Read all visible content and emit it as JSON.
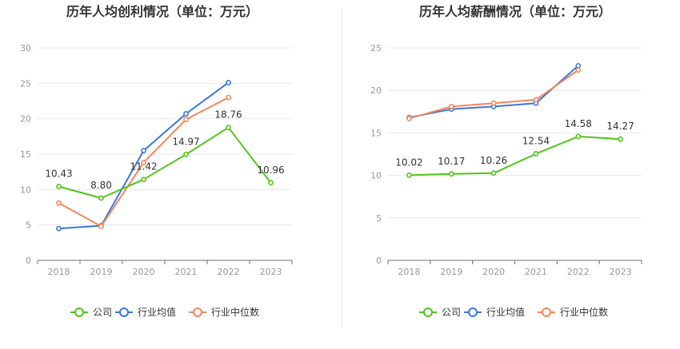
{
  "colors": {
    "company": "#52c41a",
    "industry_avg": "#3a78db",
    "industry_median": "#f4875a",
    "grid": "#e6e8f0",
    "axis": "#999999",
    "label_text": "#333333",
    "title_text": "#333333"
  },
  "legend": {
    "company": "公司",
    "industry_avg": "行业均值",
    "industry_median": "行业中位数"
  },
  "chart_data": [
    {
      "type": "line",
      "title": "历年人均创利情况（单位：万元）",
      "categories": [
        "2018",
        "2019",
        "2020",
        "2021",
        "2022",
        "2023"
      ],
      "ylim": [
        0,
        30
      ],
      "yticks": [
        "0",
        "5",
        "10",
        "15",
        "20",
        "25",
        "30"
      ],
      "grid": true,
      "legend_position": "bottom",
      "series": [
        {
          "name": "公司",
          "key": "company",
          "values": [
            10.43,
            8.8,
            11.42,
            14.97,
            18.76,
            10.96
          ],
          "labels": [
            "10.43",
            "8.80",
            "11.42",
            "14.97",
            "18.76",
            "10.96"
          ]
        },
        {
          "name": "行业均值",
          "key": "industry_avg",
          "values": [
            4.5,
            4.9,
            15.5,
            20.7,
            25.1,
            null
          ]
        },
        {
          "name": "行业中位数",
          "key": "industry_median",
          "values": [
            8.1,
            4.8,
            13.8,
            19.9,
            23.0,
            null
          ]
        }
      ]
    },
    {
      "type": "line",
      "title": "历年人均薪酬情况（单位：万元）",
      "categories": [
        "2018",
        "2019",
        "2020",
        "2021",
        "2022",
        "2023"
      ],
      "ylim": [
        0,
        25
      ],
      "yticks": [
        "0",
        "5",
        "10",
        "15",
        "20",
        "25"
      ],
      "grid": true,
      "legend_position": "bottom",
      "series": [
        {
          "name": "公司",
          "key": "company",
          "values": [
            10.02,
            10.17,
            10.26,
            12.54,
            14.58,
            14.27
          ],
          "labels": [
            "10.02",
            "10.17",
            "10.26",
            "12.54",
            "14.58",
            "14.27"
          ]
        },
        {
          "name": "行业均值",
          "key": "industry_avg",
          "values": [
            16.8,
            17.8,
            18.1,
            18.5,
            22.9,
            null
          ]
        },
        {
          "name": "行业中位数",
          "key": "industry_median",
          "values": [
            16.7,
            18.1,
            18.5,
            18.9,
            22.4,
            null
          ]
        }
      ]
    }
  ]
}
